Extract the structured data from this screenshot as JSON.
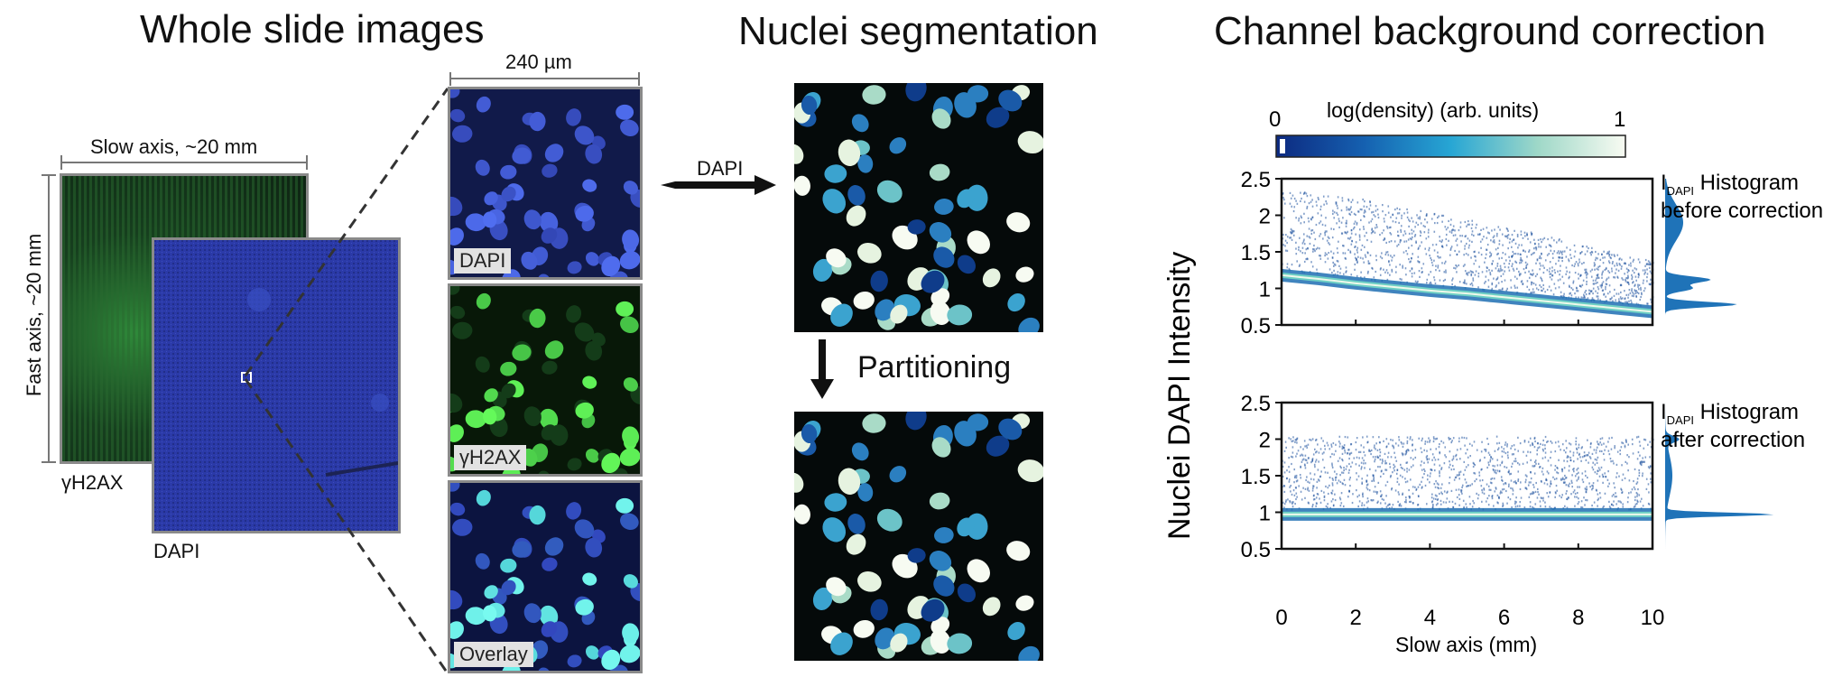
{
  "sections": {
    "wsi_title": "Whole slide images",
    "seg_title": "Nuclei segmentation",
    "bg_title": "Channel background correction"
  },
  "wsi": {
    "slow_axis_label": "Slow axis, ~20 mm",
    "fast_axis_label": "Fast axis, ~20 mm",
    "green_label": "γH2AX",
    "blue_label": "DAPI"
  },
  "zoom": {
    "scale_label": "240 µm",
    "tiles": [
      "DAPI",
      "γH2AX",
      "Overlay"
    ]
  },
  "seg": {
    "dapi_arrow_label": "DAPI",
    "partition_label": "Partitioning"
  },
  "colors": {
    "dapi_blue": "#2b3aa8",
    "yh2ax_green": "#1e7a2e",
    "bg_dark": "#050a0a",
    "density_low": "#0d3d8f",
    "density_high": "#f5fbef",
    "histogram": "#1f73b8"
  },
  "chart_data": {
    "type": "heatmap",
    "colorbar": {
      "label": "log(density) (arb. units)",
      "min_label": "0",
      "max_label": "1"
    },
    "ylabel": "Nuclei  DAPI  Intensity",
    "xlabel": "Slow axis (mm)",
    "xlim": [
      0,
      10
    ],
    "ylim": [
      0.5,
      2.5
    ],
    "xticks": [
      "0",
      "2",
      "4",
      "6",
      "8",
      "10"
    ],
    "yticks": [
      "2.5",
      "2",
      "1.5",
      "1",
      "0.5"
    ],
    "panels": [
      {
        "hist_title_main": "I",
        "hist_title_sub": "DAPI",
        "hist_title_rest": " Histogram",
        "hist_title_line2": "before correction",
        "band_x": [
          0,
          1,
          2,
          3,
          4,
          5,
          6,
          7,
          8,
          9,
          10
        ],
        "band_y": [
          1.18,
          1.13,
          1.07,
          1.02,
          0.97,
          0.93,
          0.88,
          0.83,
          0.78,
          0.73,
          0.68
        ],
        "scatter_upper_edge": [
          2.35,
          2.32,
          2.25,
          2.15,
          2.05,
          1.95,
          1.85,
          1.75,
          1.62,
          1.5,
          1.38
        ]
      },
      {
        "hist_title_main": "I",
        "hist_title_sub": "DAPI",
        "hist_title_rest": " Histogram",
        "hist_title_line2": "after correction",
        "band_x": [
          0,
          10
        ],
        "band_y": [
          0.97,
          0.97
        ],
        "scatter_upper_edge": [
          2.05,
          2.05
        ]
      }
    ]
  }
}
